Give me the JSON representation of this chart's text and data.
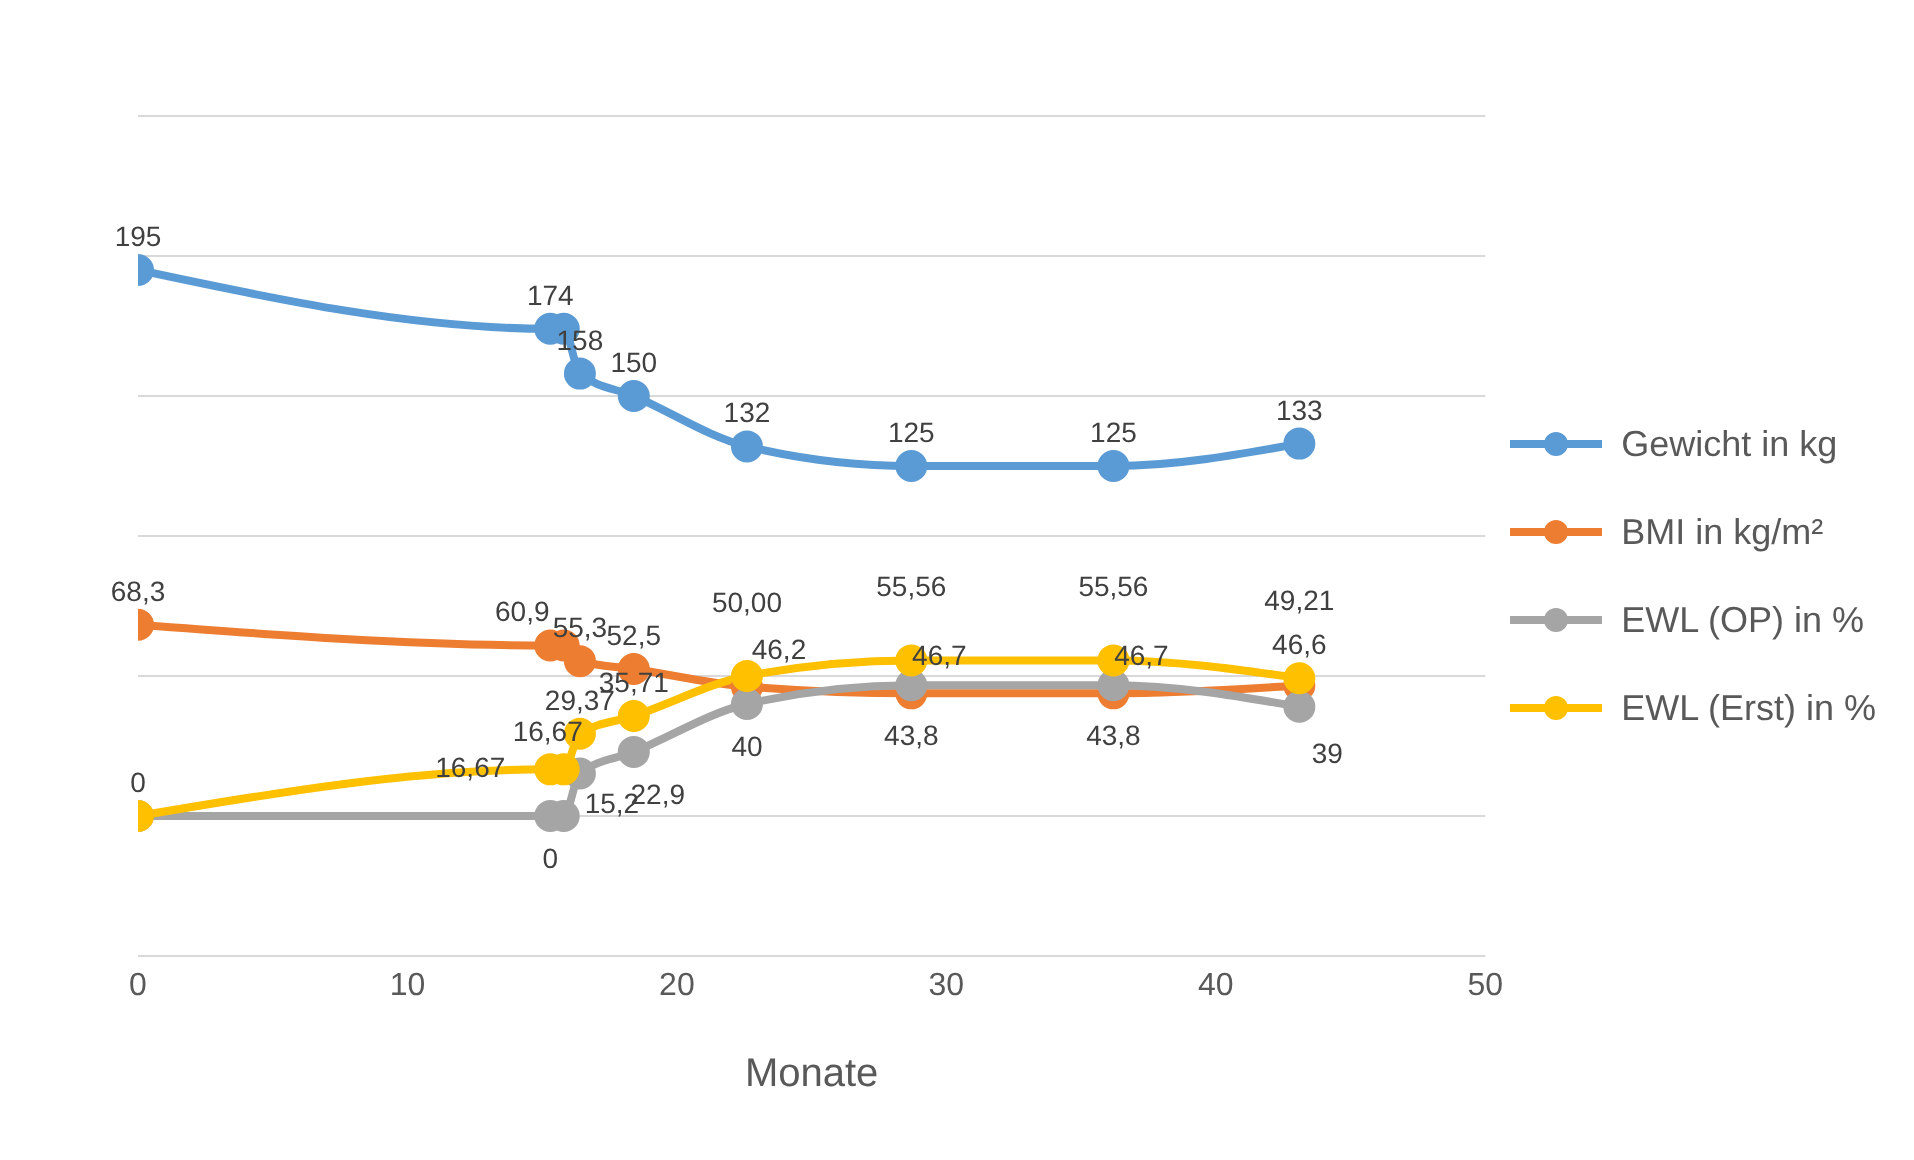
{
  "chart_data": {
    "type": "line",
    "xlabel": "Monate",
    "x": [
      0,
      15.3,
      15.8,
      16.4,
      18.4,
      22.6,
      28.7,
      36.2,
      43.1
    ],
    "xlim": [
      0,
      50
    ],
    "xticks": [
      0,
      10,
      20,
      30,
      40,
      50
    ],
    "ylim": [
      -50,
      250
    ],
    "tick_labels": "x",
    "grid": "y",
    "legend": "right",
    "marker": "circle",
    "line_style": "solid",
    "series": [
      {
        "name": "Gewicht in kg",
        "color": "#5b9bd5",
        "values": [
          195,
          174,
          174,
          158,
          150,
          132,
          125,
          125,
          133
        ],
        "value_labels": [
          "195",
          "174",
          null,
          "158",
          "150",
          "132",
          "125",
          "125",
          "133"
        ]
      },
      {
        "name": "BMI in kg/m²",
        "color": "#ed7d31",
        "values": [
          68.3,
          60.9,
          60.9,
          55.3,
          52.5,
          46.2,
          43.8,
          43.8,
          46.6
        ],
        "value_labels": [
          "68,3",
          "60,9",
          null,
          "55,3",
          "52,5",
          "46,2",
          "43,8",
          "43,8",
          "46,6"
        ]
      },
      {
        "name": "EWL (OP) in %",
        "color": "#a5a5a5",
        "values": [
          0,
          0,
          0,
          15.2,
          22.9,
          40,
          46.7,
          46.7,
          39
        ],
        "value_labels": [
          null,
          "0",
          null,
          "15,2",
          "22,9",
          "40",
          "46,7",
          "46,7",
          "39"
        ]
      },
      {
        "name": "EWL (Erst) in %",
        "color": "#ffc000",
        "values": [
          0,
          16.67,
          16.67,
          29.37,
          35.71,
          50,
          55.56,
          55.56,
          49.21
        ],
        "value_labels": [
          "0",
          "16,67",
          "16,67",
          "29,37",
          "35,71",
          "50,00",
          "55,56",
          "55,56",
          "49,21"
        ]
      }
    ]
  }
}
